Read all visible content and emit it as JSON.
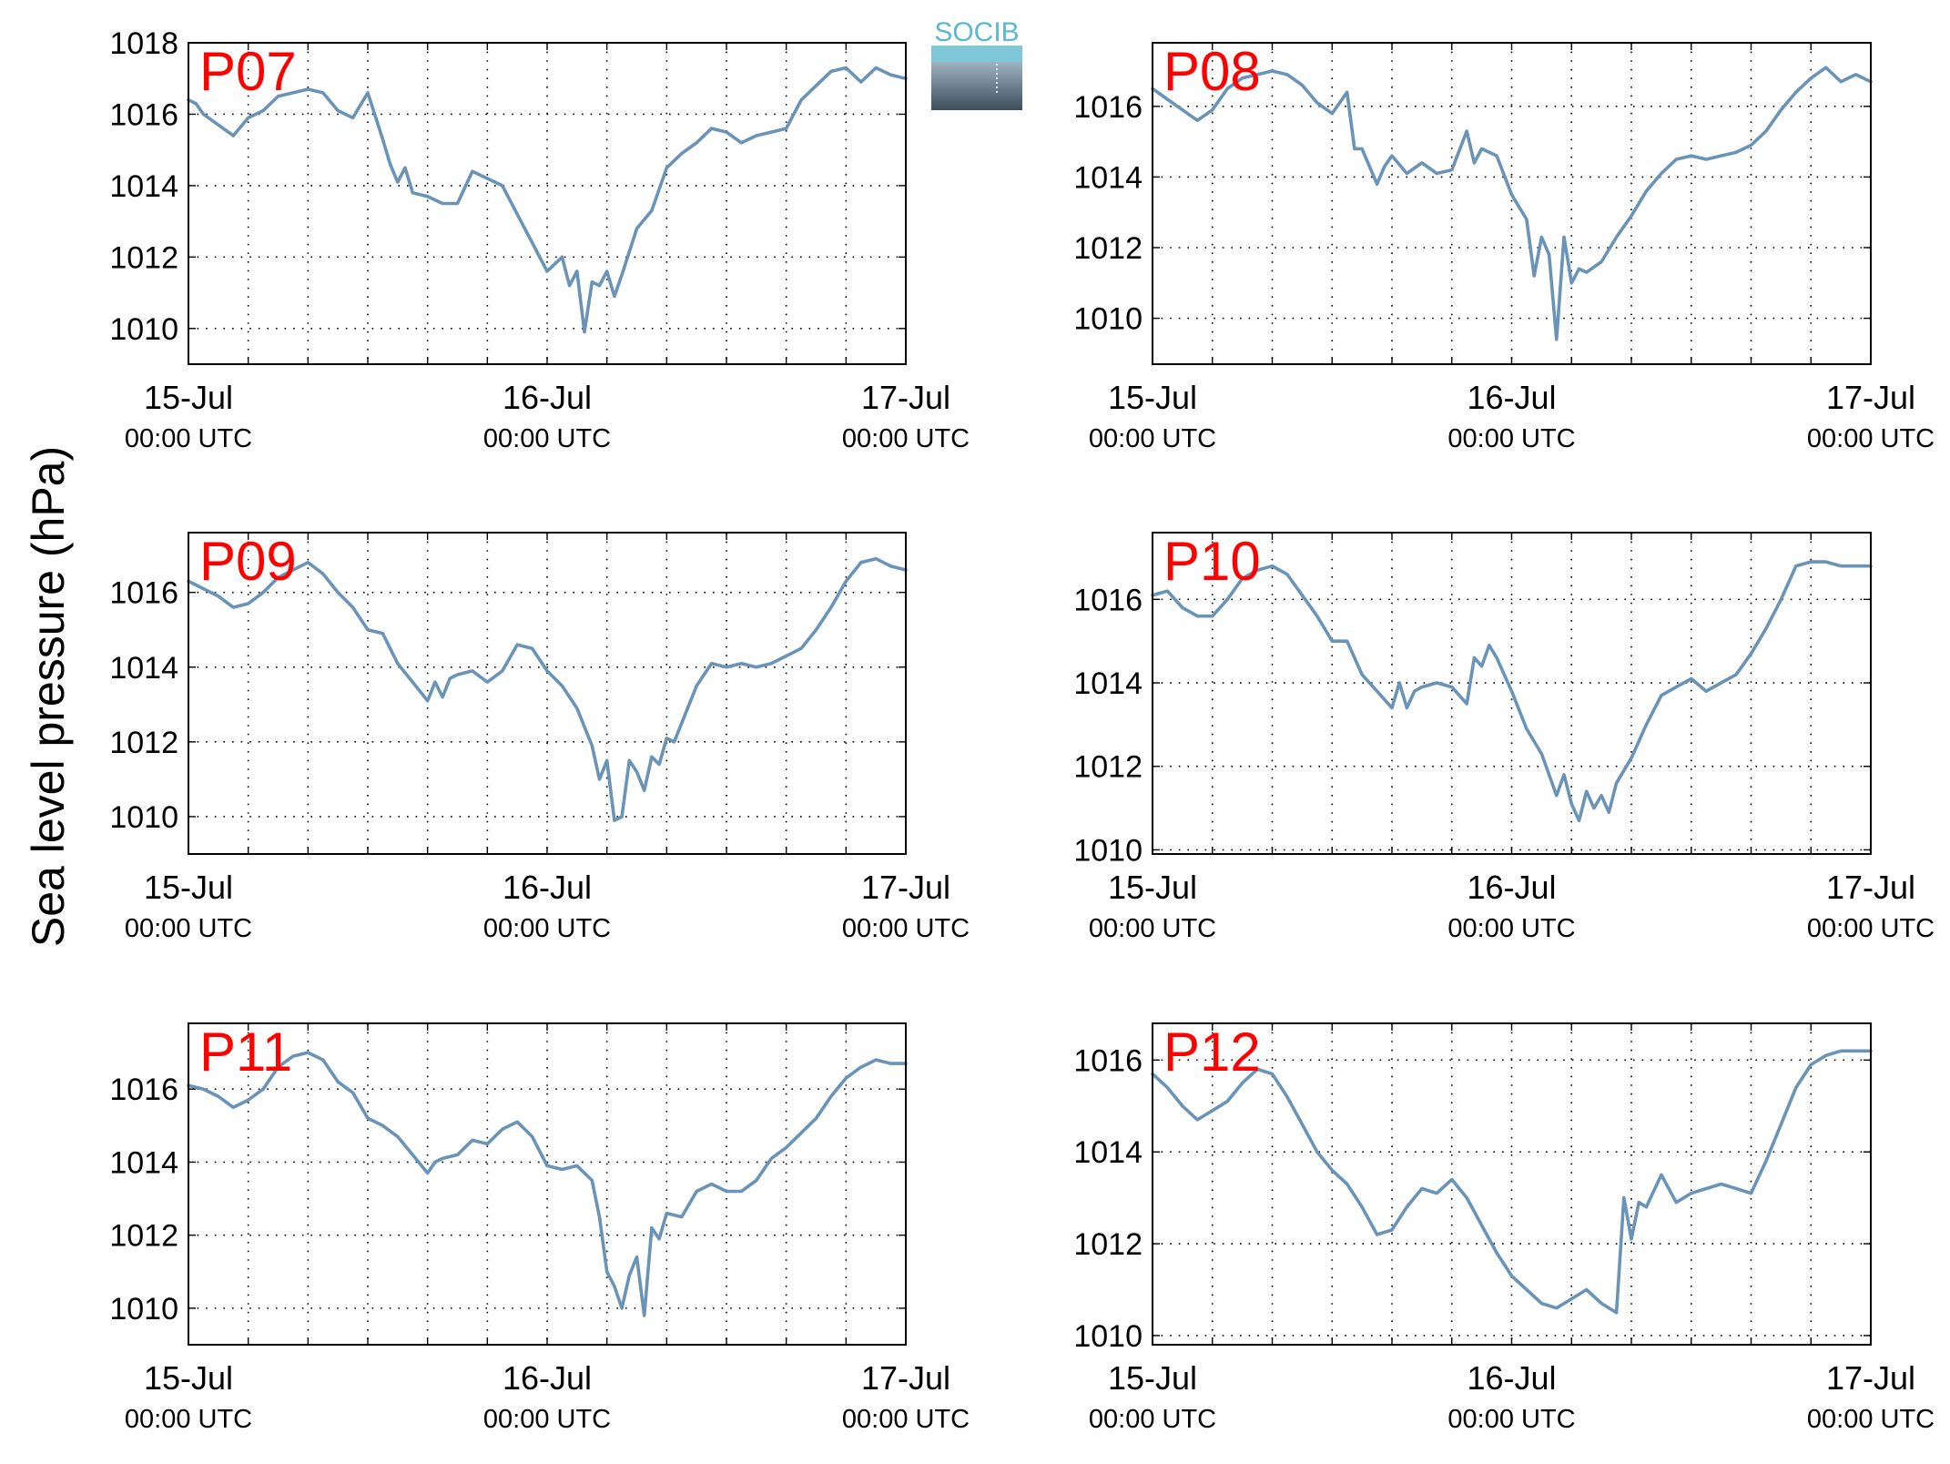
{
  "figure": {
    "ylabel": "Sea level pressure (hPa)",
    "logo_text": "SOCIB",
    "line_color": "#6a93b8",
    "label_color": "#ff0000"
  },
  "chart_data": [
    {
      "type": "line",
      "title": "P07",
      "x_tick_labels": [
        [
          "15-Jul",
          "00:00 UTC"
        ],
        [
          "16-Jul",
          "00:00 UTC"
        ],
        [
          "17-Jul",
          "00:00 UTC"
        ]
      ],
      "xlim": [
        0,
        48
      ],
      "ylim": [
        1009,
        1018
      ],
      "yticks": [
        1010,
        1012,
        1014,
        1016,
        1018
      ],
      "grid": true,
      "series": [
        {
          "x": [
            0,
            0.5,
            1,
            2,
            3,
            4,
            5,
            6,
            7,
            8,
            9,
            10,
            11,
            12,
            13,
            13.5,
            14,
            14.5,
            15,
            16,
            17,
            18,
            19,
            20,
            21,
            22,
            23,
            24,
            25,
            25.5,
            26,
            26.5,
            27,
            27.5,
            28,
            28.5,
            29,
            30,
            31,
            32,
            33,
            34,
            35,
            36,
            37,
            38,
            39,
            40,
            41,
            42,
            43,
            44,
            45,
            46,
            47,
            48
          ],
          "values": [
            1016.4,
            1016.3,
            1016.0,
            1015.7,
            1015.4,
            1015.9,
            1016.1,
            1016.5,
            1016.6,
            1016.7,
            1016.6,
            1016.1,
            1015.9,
            1016.6,
            1015.3,
            1014.6,
            1014.1,
            1014.5,
            1013.8,
            1013.7,
            1013.5,
            1013.5,
            1014.4,
            1014.2,
            1014.0,
            1013.2,
            1012.4,
            1011.6,
            1012.0,
            1011.2,
            1011.6,
            1009.9,
            1011.3,
            1011.2,
            1011.6,
            1010.9,
            1011.5,
            1012.8,
            1013.3,
            1014.5,
            1014.9,
            1015.2,
            1015.6,
            1015.5,
            1015.2,
            1015.4,
            1015.5,
            1015.6,
            1016.4,
            1016.8,
            1017.2,
            1017.3,
            1016.9,
            1017.3,
            1017.1,
            1017.0
          ]
        }
      ]
    },
    {
      "type": "line",
      "title": "P08",
      "x_tick_labels": [
        [
          "15-Jul",
          "00:00 UTC"
        ],
        [
          "16-Jul",
          "00:00 UTC"
        ],
        [
          "17-Jul",
          "00:00 UTC"
        ]
      ],
      "xlim": [
        0,
        48
      ],
      "ylim": [
        1008.7,
        1017.8
      ],
      "yticks": [
        1010,
        1012,
        1014,
        1016
      ],
      "grid": true,
      "series": [
        {
          "x": [
            0,
            1,
            2,
            3,
            4,
            5,
            6,
            7,
            8,
            9,
            10,
            11,
            12,
            13,
            13.5,
            14,
            15,
            15.5,
            16,
            17,
            18,
            19,
            20,
            21,
            21.5,
            22,
            23,
            24,
            25,
            25.5,
            26,
            26.5,
            27,
            27.5,
            28,
            28.5,
            29,
            30,
            31,
            32,
            33,
            34,
            35,
            36,
            37,
            38,
            39,
            40,
            41,
            42,
            43,
            44,
            45,
            46,
            47,
            48
          ],
          "values": [
            1016.5,
            1016.2,
            1015.9,
            1015.6,
            1015.9,
            1016.5,
            1016.8,
            1016.9,
            1017.0,
            1016.9,
            1016.6,
            1016.1,
            1015.8,
            1016.4,
            1014.8,
            1014.8,
            1013.8,
            1014.3,
            1014.6,
            1014.1,
            1014.4,
            1014.1,
            1014.2,
            1015.3,
            1014.4,
            1014.8,
            1014.6,
            1013.5,
            1012.8,
            1011.2,
            1012.3,
            1011.8,
            1009.4,
            1012.3,
            1011.0,
            1011.4,
            1011.3,
            1011.6,
            1012.3,
            1012.9,
            1013.6,
            1014.1,
            1014.5,
            1014.6,
            1014.5,
            1014.6,
            1014.7,
            1014.9,
            1015.3,
            1015.9,
            1016.4,
            1016.8,
            1017.1,
            1016.7,
            1016.9,
            1016.7
          ]
        }
      ]
    },
    {
      "type": "line",
      "title": "P09",
      "x_tick_labels": [
        [
          "15-Jul",
          "00:00 UTC"
        ],
        [
          "16-Jul",
          "00:00 UTC"
        ],
        [
          "17-Jul",
          "00:00 UTC"
        ]
      ],
      "xlim": [
        0,
        48
      ],
      "ylim": [
        1009,
        1017.6
      ],
      "yticks": [
        1010,
        1012,
        1014,
        1016
      ],
      "grid": true,
      "series": [
        {
          "x": [
            0,
            1,
            2,
            3,
            4,
            5,
            6,
            7,
            8,
            9,
            10,
            11,
            12,
            13,
            14,
            15,
            16,
            16.5,
            17,
            17.5,
            18,
            19,
            20,
            21,
            22,
            23,
            24,
            25,
            26,
            27,
            27.5,
            28,
            28.5,
            29,
            29.5,
            30,
            30.5,
            31,
            31.5,
            32,
            32.5,
            33,
            34,
            35,
            36,
            37,
            38,
            39,
            40,
            41,
            42,
            43,
            44,
            45,
            46,
            47,
            48
          ],
          "values": [
            1016.3,
            1016.1,
            1015.9,
            1015.6,
            1015.7,
            1016.0,
            1016.4,
            1016.6,
            1016.8,
            1016.5,
            1016.0,
            1015.6,
            1015.0,
            1014.9,
            1014.1,
            1013.6,
            1013.1,
            1013.6,
            1013.2,
            1013.7,
            1013.8,
            1013.9,
            1013.6,
            1013.9,
            1014.6,
            1014.5,
            1013.9,
            1013.5,
            1012.9,
            1011.9,
            1011.0,
            1011.5,
            1009.9,
            1010.0,
            1011.5,
            1011.2,
            1010.7,
            1011.6,
            1011.4,
            1012.1,
            1012.0,
            1012.5,
            1013.5,
            1014.1,
            1014.0,
            1014.1,
            1014.0,
            1014.1,
            1014.3,
            1014.5,
            1015.0,
            1015.6,
            1016.3,
            1016.8,
            1016.9,
            1016.7,
            1016.6
          ]
        }
      ]
    },
    {
      "type": "line",
      "title": "P10",
      "x_tick_labels": [
        [
          "15-Jul",
          "00:00 UTC"
        ],
        [
          "16-Jul",
          "00:00 UTC"
        ],
        [
          "17-Jul",
          "00:00 UTC"
        ]
      ],
      "xlim": [
        0,
        48
      ],
      "ylim": [
        1009.9,
        1017.6
      ],
      "yticks": [
        1010,
        1012,
        1014,
        1016
      ],
      "grid": true,
      "series": [
        {
          "x": [
            0,
            1,
            2,
            3,
            4,
            5,
            6,
            7,
            8,
            9,
            10,
            11,
            12,
            13,
            14,
            15,
            16,
            16.5,
            17,
            17.5,
            18,
            19,
            20,
            21,
            21.5,
            22,
            22.5,
            23,
            24,
            25,
            26,
            27,
            27.5,
            28,
            28.5,
            29,
            29.5,
            30,
            30.5,
            31,
            32,
            33,
            34,
            35,
            36,
            37,
            38,
            39,
            40,
            41,
            42,
            43,
            44,
            45,
            46,
            47,
            48
          ],
          "values": [
            1016.1,
            1016.2,
            1015.8,
            1015.6,
            1015.6,
            1016.0,
            1016.5,
            1016.7,
            1016.8,
            1016.6,
            1016.1,
            1015.6,
            1015.0,
            1015.0,
            1014.2,
            1013.8,
            1013.4,
            1014.0,
            1013.4,
            1013.8,
            1013.9,
            1014.0,
            1013.9,
            1013.5,
            1014.6,
            1014.4,
            1014.9,
            1014.6,
            1013.8,
            1012.9,
            1012.3,
            1011.3,
            1011.8,
            1011.1,
            1010.7,
            1011.4,
            1011.0,
            1011.3,
            1010.9,
            1011.6,
            1012.2,
            1013.0,
            1013.7,
            1013.9,
            1014.1,
            1013.8,
            1014.0,
            1014.2,
            1014.7,
            1015.3,
            1016.0,
            1016.8,
            1016.9,
            1016.9,
            1016.8,
            1016.8,
            1016.8
          ]
        }
      ]
    },
    {
      "type": "line",
      "title": "P11",
      "x_tick_labels": [
        [
          "15-Jul",
          "00:00 UTC"
        ],
        [
          "16-Jul",
          "00:00 UTC"
        ],
        [
          "17-Jul",
          "00:00 UTC"
        ]
      ],
      "xlim": [
        0,
        48
      ],
      "ylim": [
        1009,
        1017.8
      ],
      "yticks": [
        1010,
        1012,
        1014,
        1016
      ],
      "grid": true,
      "series": [
        {
          "x": [
            0,
            1,
            2,
            3,
            4,
            5,
            6,
            7,
            8,
            9,
            10,
            11,
            12,
            13,
            14,
            15,
            16,
            16.5,
            17,
            18,
            19,
            20,
            21,
            22,
            23,
            24,
            25,
            26,
            27,
            27.5,
            28,
            28.5,
            29,
            29.5,
            30,
            30.5,
            31,
            31.5,
            32,
            33,
            34,
            35,
            36,
            37,
            38,
            39,
            40,
            41,
            42,
            43,
            44,
            45,
            46,
            47,
            48
          ],
          "values": [
            1016.1,
            1016.0,
            1015.8,
            1015.5,
            1015.7,
            1016.0,
            1016.6,
            1016.9,
            1017.0,
            1016.8,
            1016.2,
            1015.9,
            1015.2,
            1015.0,
            1014.7,
            1014.2,
            1013.7,
            1014.0,
            1014.1,
            1014.2,
            1014.6,
            1014.5,
            1014.9,
            1015.1,
            1014.7,
            1013.9,
            1013.8,
            1013.9,
            1013.5,
            1012.5,
            1011.0,
            1010.6,
            1010.0,
            1010.9,
            1011.4,
            1009.8,
            1012.2,
            1011.9,
            1012.6,
            1012.5,
            1013.2,
            1013.4,
            1013.2,
            1013.2,
            1013.5,
            1014.1,
            1014.4,
            1014.8,
            1015.2,
            1015.8,
            1016.3,
            1016.6,
            1016.8,
            1016.7,
            1016.7
          ]
        }
      ]
    },
    {
      "type": "line",
      "title": "P12",
      "x_tick_labels": [
        [
          "15-Jul",
          "00:00 UTC"
        ],
        [
          "16-Jul",
          "00:00 UTC"
        ],
        [
          "17-Jul",
          "00:00 UTC"
        ]
      ],
      "xlim": [
        0,
        48
      ],
      "ylim": [
        1009.8,
        1016.8
      ],
      "yticks": [
        1010,
        1012,
        1014,
        1016
      ],
      "grid": true,
      "series": [
        {
          "x": [
            0,
            1,
            2,
            3,
            4,
            5,
            6,
            7,
            8,
            9,
            10,
            11,
            12,
            13,
            14,
            15,
            16,
            17,
            18,
            19,
            20,
            21,
            22,
            23,
            24,
            25,
            26,
            27,
            28,
            29,
            30,
            31,
            31.5,
            32,
            32.5,
            33,
            34,
            35,
            36,
            37,
            38,
            39,
            40,
            41,
            42,
            43,
            44,
            45,
            46,
            47,
            48
          ],
          "values": [
            1015.7,
            1015.4,
            1015.0,
            1014.7,
            1014.9,
            1015.1,
            1015.5,
            1015.8,
            1015.7,
            1015.2,
            1014.6,
            1014.0,
            1013.6,
            1013.3,
            1012.8,
            1012.2,
            1012.3,
            1012.8,
            1013.2,
            1013.1,
            1013.4,
            1013.0,
            1012.4,
            1011.8,
            1011.3,
            1011.0,
            1010.7,
            1010.6,
            1010.8,
            1011.0,
            1010.7,
            1010.5,
            1013.0,
            1012.1,
            1012.9,
            1012.8,
            1013.5,
            1012.9,
            1013.1,
            1013.2,
            1013.3,
            1013.2,
            1013.1,
            1013.8,
            1014.6,
            1015.4,
            1015.9,
            1016.1,
            1016.2,
            1016.2,
            1016.2
          ]
        }
      ]
    }
  ]
}
